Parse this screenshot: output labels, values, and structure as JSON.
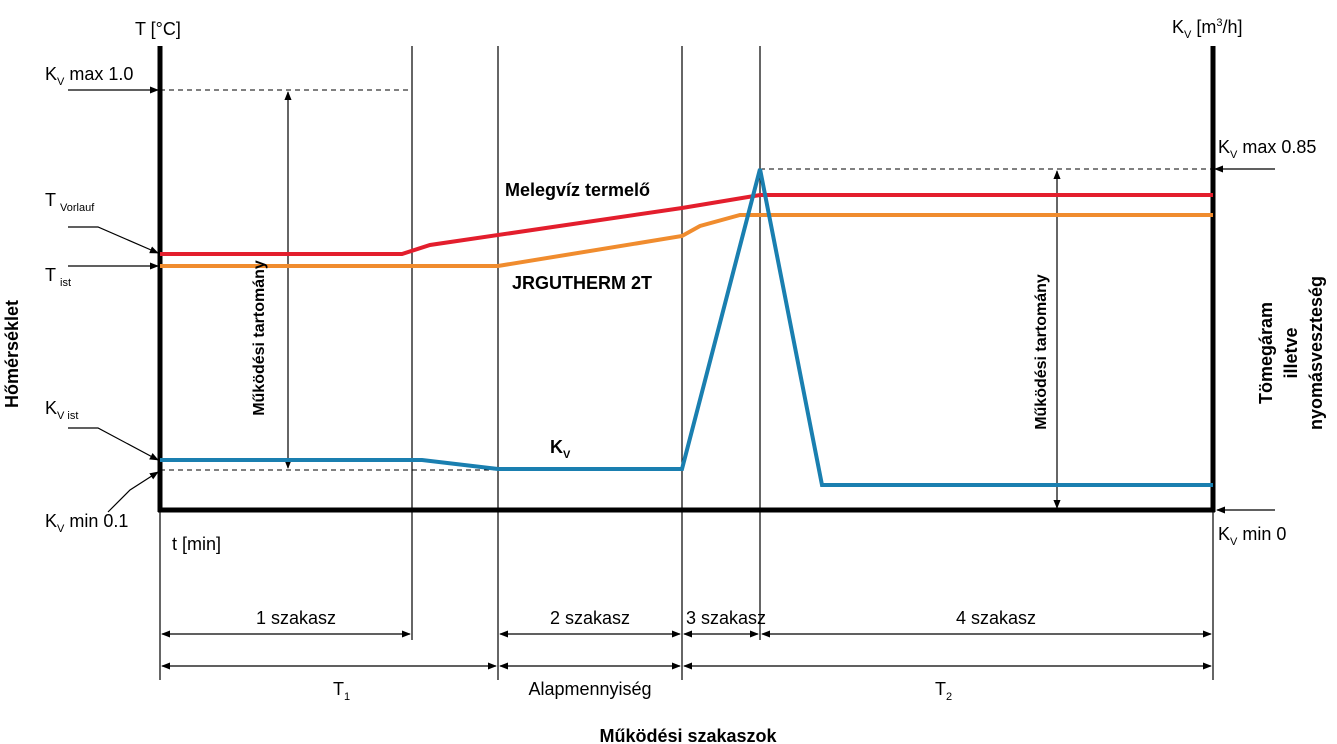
{
  "axes": {
    "left_unit": "T [°C]",
    "right_unit_k": "K",
    "right_unit_v": "V",
    "right_unit_rest": " [m",
    "right_unit_sup": "3",
    "right_unit_end": "/h]",
    "time_label": "t [min]",
    "left_title": "Hőmérséklet",
    "right_title_line1": "Tömegáram",
    "right_title_line2": "illetve",
    "right_title_line3": "nyomásveszteség",
    "bottom_title": "Működési szakaszok"
  },
  "left_labels": {
    "kv_max": {
      "main": "K",
      "sub": "V",
      "rest": " max 1.0"
    },
    "t_vorlauf": {
      "main": "T",
      "sub": "Vorlauf"
    },
    "t_ist": {
      "main": "T",
      "sub": "ist"
    },
    "kv_ist": {
      "main": "K",
      "sub": "V ist"
    },
    "kv_min": {
      "main": "K",
      "sub": "V",
      "rest": " min 0.1"
    }
  },
  "right_labels": {
    "kv_max": {
      "main": "K",
      "sub": "V",
      "rest": " max 0.85"
    },
    "kv_min": {
      "main": "K",
      "sub": "V",
      "rest": " min 0"
    }
  },
  "curve_labels": {
    "producer": "Melegvíz termelő",
    "jrg": "JRGUTHERM 2T",
    "kv_main": "K",
    "kv_sub": "V"
  },
  "range_labels": {
    "left": "Működési tartomány",
    "right": "Működési tartomány"
  },
  "phases": [
    {
      "label": "1 szakasz"
    },
    {
      "label": "2 szakasz"
    },
    {
      "label": "3 szakasz"
    },
    {
      "label": "4 szakasz"
    }
  ],
  "periods": {
    "t1_main": "T",
    "t1_sub": "1",
    "base": "Alapmennyiség",
    "t2_main": "T",
    "t2_sub": "2"
  },
  "colors": {
    "producer": "#e31e2d",
    "jrg": "#f08c2e",
    "kv": "#1a7fb0"
  }
}
